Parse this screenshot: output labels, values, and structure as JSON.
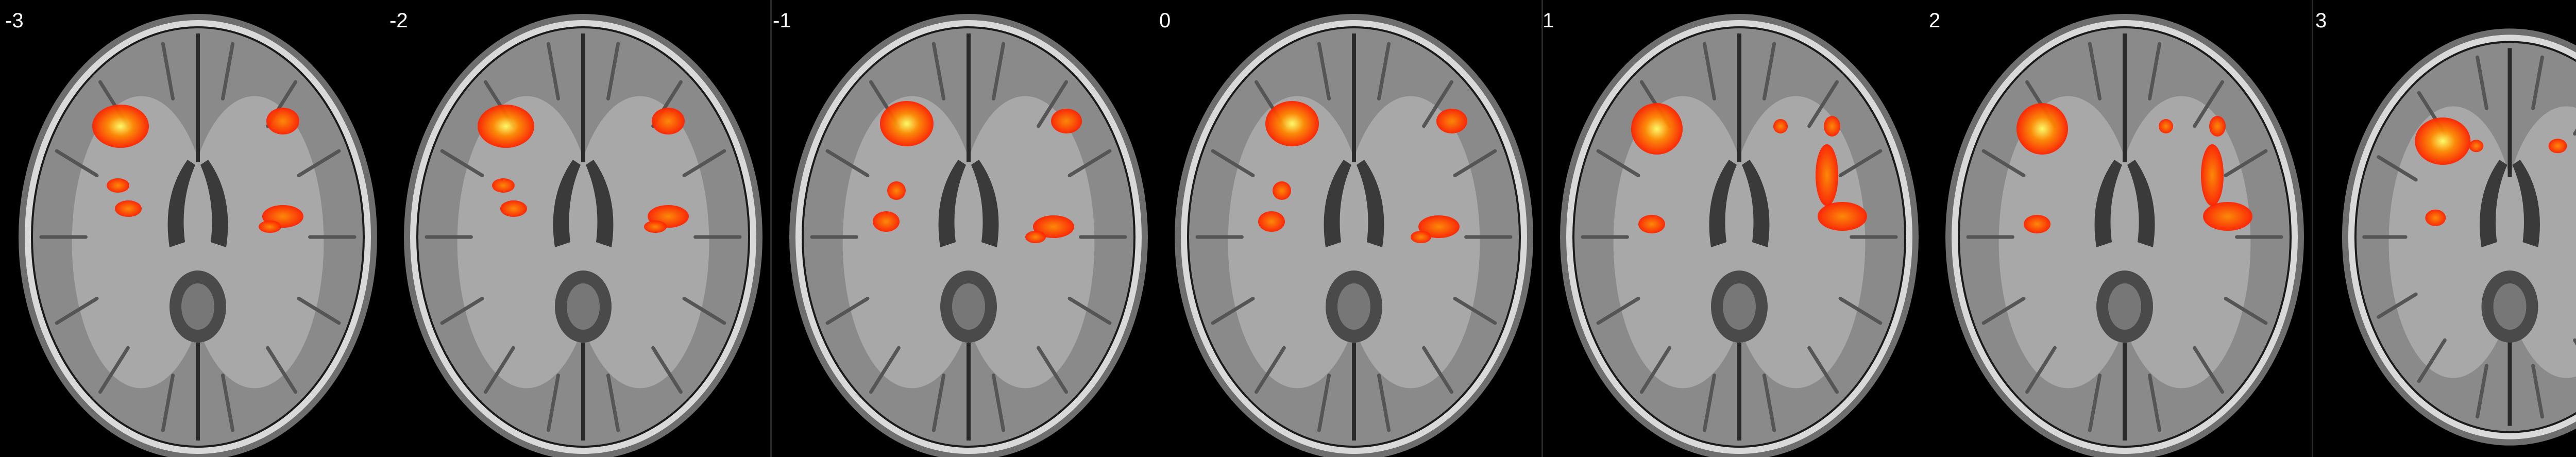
{
  "slices": [
    {
      "label": "-3",
      "variant": "low"
    },
    {
      "label": "-2",
      "variant": "low"
    },
    {
      "label": "-1",
      "variant": "mid"
    },
    {
      "label": "0",
      "variant": "mid"
    },
    {
      "label": "1",
      "variant": "high"
    },
    {
      "label": "2",
      "variant": "high"
    },
    {
      "label": "3",
      "variant": "top"
    }
  ],
  "colors": {
    "background": "#000000",
    "skull": "#d9d9d9",
    "brain": "#8a8a8a",
    "activation_hot": "#ff2200",
    "activation_mid": "#ff8800",
    "activation_peak": "#ffff66"
  }
}
